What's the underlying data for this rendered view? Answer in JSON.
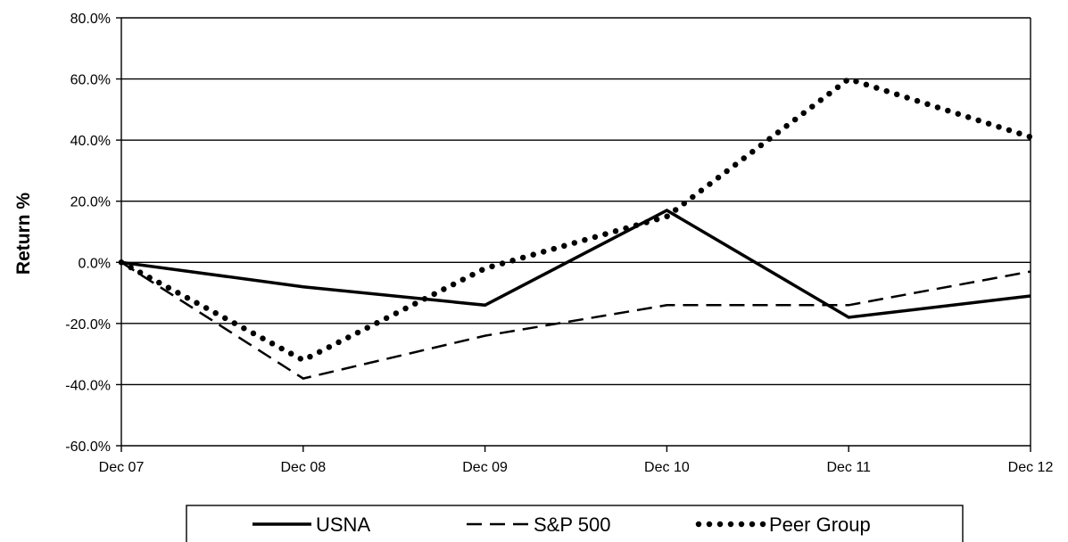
{
  "chart_data": {
    "type": "line",
    "title": "",
    "xlabel": "",
    "ylabel": "Return %",
    "categories": [
      "Dec 07",
      "Dec 08",
      "Dec 09",
      "Dec 10",
      "Dec 11",
      "Dec 12"
    ],
    "y_tick_labels": [
      "-60.0%",
      "-40.0%",
      "-20.0%",
      "0.0%",
      "20.0%",
      "40.0%",
      "60.0%",
      "80.0%"
    ],
    "ylim": [
      -60,
      80
    ],
    "y_tick_step": 20,
    "grid": true,
    "legend_position": "bottom",
    "series": [
      {
        "name": "USNA",
        "style": "solid",
        "color": "#000000",
        "values": [
          0,
          -8,
          -14,
          17,
          -18,
          -11
        ]
      },
      {
        "name": "S&P 500",
        "style": "dashed",
        "color": "#000000",
        "values": [
          0,
          -38,
          -24,
          -14,
          -14,
          -3
        ]
      },
      {
        "name": "Peer Group",
        "style": "dotted",
        "color": "#000000",
        "values": [
          0,
          -32,
          -2,
          15,
          60,
          41
        ]
      }
    ]
  }
}
